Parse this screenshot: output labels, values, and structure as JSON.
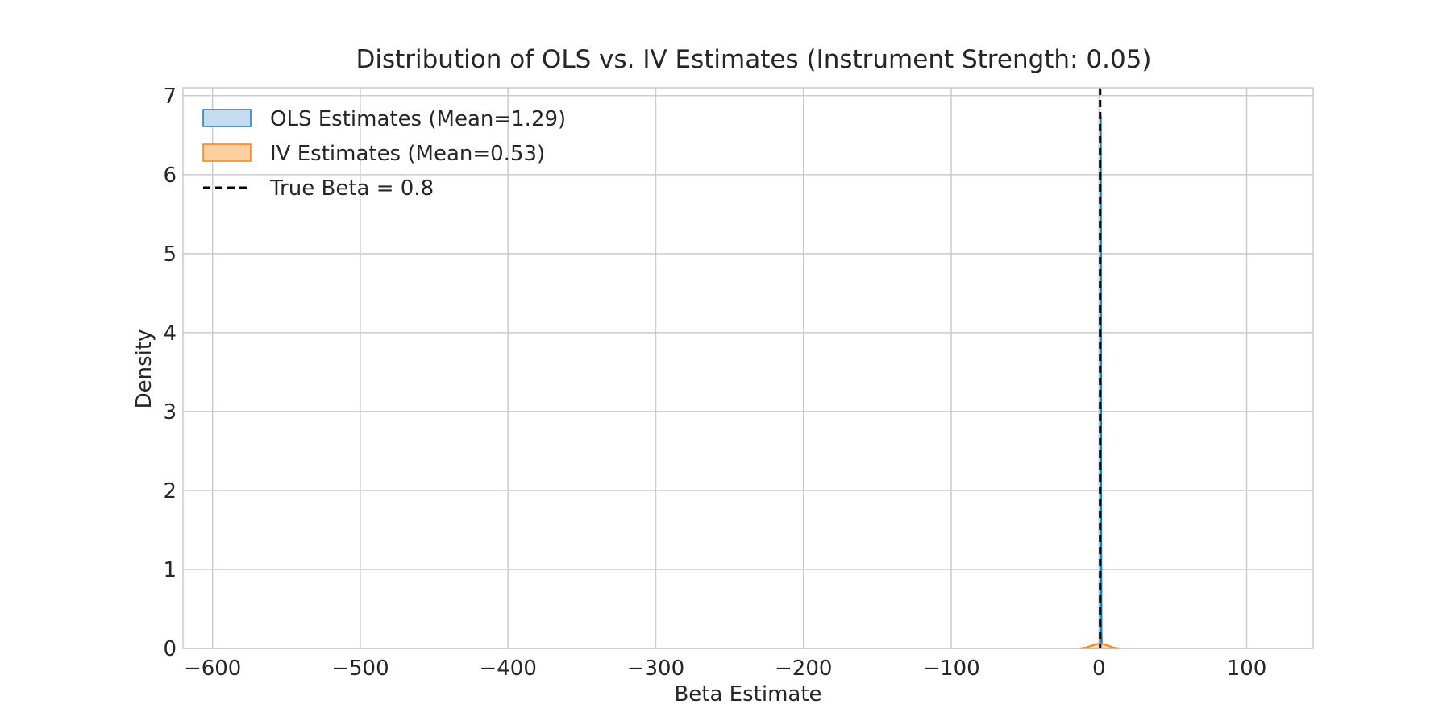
{
  "chart_data": {
    "type": "area",
    "title": "Distribution of OLS vs. IV Estimates (Instrument Strength: 0.05)",
    "xlabel": "Beta Estimate",
    "ylabel": "Density",
    "xlim": [
      -620,
      145
    ],
    "ylim": [
      0,
      7.1
    ],
    "xticks": [
      -600,
      -500,
      -400,
      -300,
      -200,
      -100,
      0,
      100
    ],
    "xtick_labels": [
      "−600",
      "−500",
      "−400",
      "−300",
      "−200",
      "−100",
      "0",
      "100"
    ],
    "yticks": [
      0,
      1,
      2,
      3,
      4,
      5,
      6,
      7
    ],
    "ytick_labels": [
      "0",
      "1",
      "2",
      "3",
      "4",
      "5",
      "6",
      "7"
    ],
    "grid": true,
    "legend_position": "top-left",
    "series": [
      {
        "name": "OLS Estimates (Mean=1.29)",
        "kind": "kde-fill",
        "color": "#1f77b4",
        "fill": "#c6dbef",
        "x": [
          0.6,
          0.85,
          1.05,
          1.2,
          1.29,
          1.4,
          1.55,
          1.75,
          2.0
        ],
        "y": [
          0,
          0.2,
          1.8,
          5.4,
          6.75,
          5.4,
          1.8,
          0.2,
          0
        ]
      },
      {
        "name": "IV Estimates (Mean=0.53)",
        "kind": "kde-fill",
        "color": "#ff7f0e",
        "fill": "#fdd0a2",
        "x": [
          -13,
          -9,
          -5,
          -2,
          0.53,
          3,
          6,
          10,
          14
        ],
        "y": [
          0,
          0.01,
          0.035,
          0.055,
          0.06,
          0.055,
          0.035,
          0.01,
          0
        ]
      }
    ],
    "reference_line": {
      "label": "True Beta = 0.8",
      "x": 0.8,
      "color": "#000000",
      "style": "dashed"
    }
  }
}
